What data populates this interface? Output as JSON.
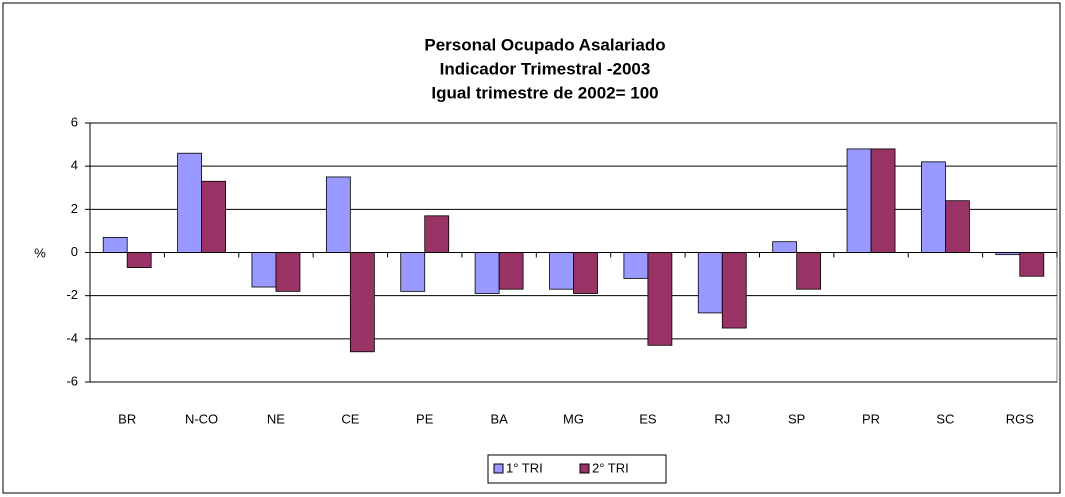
{
  "chart_data": {
    "type": "bar",
    "title": [
      "Personal Ocupado Asalariado",
      "Indicador Trimestral  -2003",
      "Igual trimestre de 2002= 100"
    ],
    "y_label": "%",
    "categories": [
      "BR",
      "N-CO",
      "NE",
      "CE",
      "PE",
      "BA",
      "MG",
      "ES",
      "RJ",
      "SP",
      "PR",
      "SC",
      "RGS"
    ],
    "series": [
      {
        "name": "1° TRI",
        "color": "#9999ff",
        "values": [
          0.7,
          4.6,
          -1.6,
          3.5,
          -1.8,
          -1.9,
          -1.7,
          -1.2,
          -2.8,
          0.5,
          4.8,
          4.2,
          -0.1
        ]
      },
      {
        "name": "2° TRI",
        "color": "#993366",
        "values": [
          -0.7,
          3.3,
          -1.8,
          -4.6,
          1.7,
          -1.7,
          -1.9,
          -4.3,
          -3.5,
          -1.7,
          4.8,
          2.4,
          -1.1
        ]
      }
    ],
    "ylim": [
      -6,
      6
    ],
    "yticks": [
      -6,
      -4,
      -2,
      0,
      2,
      4,
      6
    ],
    "grid": true,
    "legend": "bottom"
  }
}
